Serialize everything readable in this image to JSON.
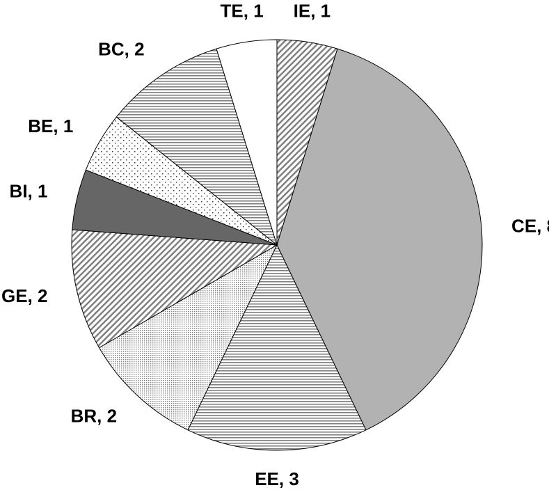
{
  "chart_data": {
    "type": "pie",
    "values": [
      1,
      8,
      3,
      2,
      2,
      1,
      1,
      2,
      1
    ],
    "value_labels": [
      "IE, 1",
      "CE, 8",
      "EE, 3",
      "BR, 2",
      "GE, 2",
      "BI, 1",
      "BE, 1",
      "BC, 2",
      "TE, 1"
    ],
    "colors": [
      "#808080",
      "#b2b2b2",
      "#808080",
      "#808080",
      "#808080",
      "#666666",
      "#404040",
      "#808080",
      "#ffffff"
    ],
    "patterns": [
      "diagonal",
      "solid",
      "horizontal",
      "dense-dots",
      "diagonal",
      "solid",
      "sparse-dots",
      "horizontal",
      "solid"
    ]
  }
}
